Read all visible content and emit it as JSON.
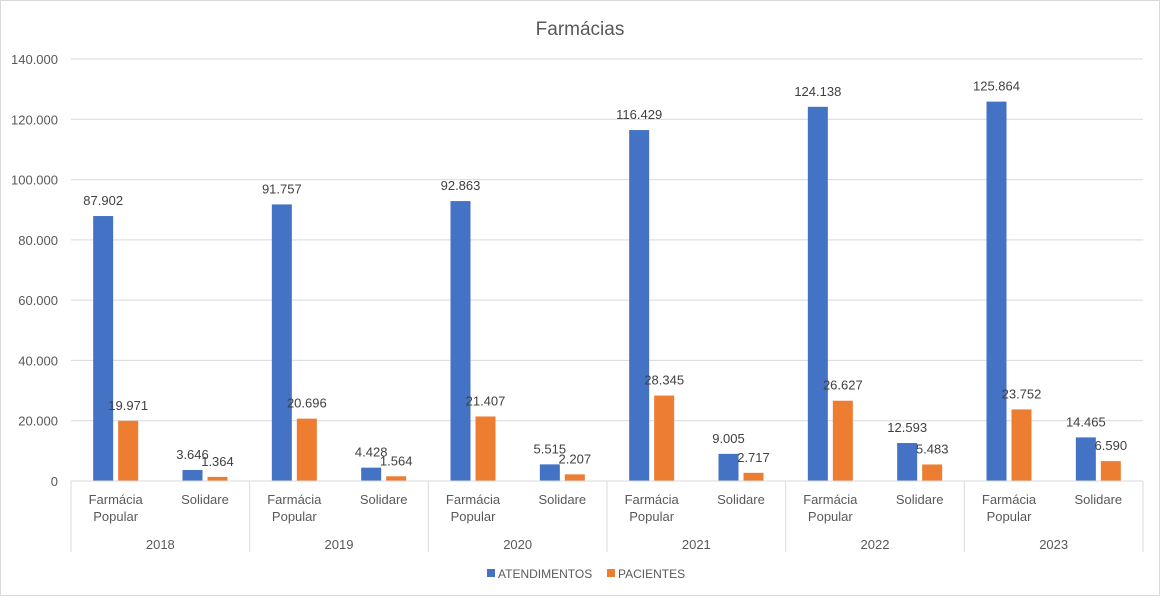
{
  "chart_data": {
    "type": "bar",
    "title": "Farmácias",
    "xlabel": "",
    "ylabel": "",
    "ylim": [
      0,
      140000
    ],
    "yticks": [
      {
        "value": 0,
        "label": "0"
      },
      {
        "value": 20000,
        "label": "20.000"
      },
      {
        "value": 40000,
        "label": "40.000"
      },
      {
        "value": 60000,
        "label": "60.000"
      },
      {
        "value": 80000,
        "label": "80.000"
      },
      {
        "value": 100000,
        "label": "100.000"
      },
      {
        "value": 120000,
        "label": "120.000"
      },
      {
        "value": 140000,
        "label": "140.000"
      }
    ],
    "grid": true,
    "legend_position": "bottom",
    "groups": [
      {
        "label": "2018",
        "categories": [
          {
            "label": [
              "Farmácia",
              "Popular"
            ],
            "values": [
              87902,
              19971
            ],
            "labels": [
              "87.902",
              "19.971"
            ]
          },
          {
            "label": [
              "Solidare"
            ],
            "values": [
              3646,
              1364
            ],
            "labels": [
              "3.646",
              "1.364"
            ]
          }
        ]
      },
      {
        "label": "2019",
        "categories": [
          {
            "label": [
              "Farmácia",
              "Popular"
            ],
            "values": [
              91757,
              20696
            ],
            "labels": [
              "91.757",
              "20.696"
            ]
          },
          {
            "label": [
              "Solidare"
            ],
            "values": [
              4428,
              1564
            ],
            "labels": [
              "4.428",
              "1.564"
            ]
          }
        ]
      },
      {
        "label": "2020",
        "categories": [
          {
            "label": [
              "Farmácia",
              "Popular"
            ],
            "values": [
              92863,
              21407
            ],
            "labels": [
              "92.863",
              "21.407"
            ]
          },
          {
            "label": [
              "Solidare"
            ],
            "values": [
              5515,
              2207
            ],
            "labels": [
              "5.515",
              "2.207"
            ]
          }
        ]
      },
      {
        "label": "2021",
        "categories": [
          {
            "label": [
              "Farmácia",
              "Popular"
            ],
            "values": [
              116429,
              28345
            ],
            "labels": [
              "116.429",
              "28.345"
            ]
          },
          {
            "label": [
              "Solidare"
            ],
            "values": [
              9005,
              2717
            ],
            "labels": [
              "9.005",
              "2.717"
            ]
          }
        ]
      },
      {
        "label": "2022",
        "categories": [
          {
            "label": [
              "Farmácia",
              "Popular"
            ],
            "values": [
              124138,
              26627
            ],
            "labels": [
              "124.138",
              "26.627"
            ]
          },
          {
            "label": [
              "Solidare"
            ],
            "values": [
              12593,
              5483
            ],
            "labels": [
              "12.593",
              "5.483"
            ]
          }
        ]
      },
      {
        "label": "2023",
        "categories": [
          {
            "label": [
              "Farmácia",
              "Popular"
            ],
            "values": [
              125864,
              23752
            ],
            "labels": [
              "125.864",
              "23.752"
            ]
          },
          {
            "label": [
              "Solidare"
            ],
            "values": [
              14465,
              6590
            ],
            "labels": [
              "14.465",
              "6.590"
            ]
          }
        ]
      }
    ],
    "series": [
      {
        "name": "ATENDIMENTOS",
        "color": "#4472c4"
      },
      {
        "name": "PACIENTES",
        "color": "#ed7d31"
      }
    ]
  }
}
